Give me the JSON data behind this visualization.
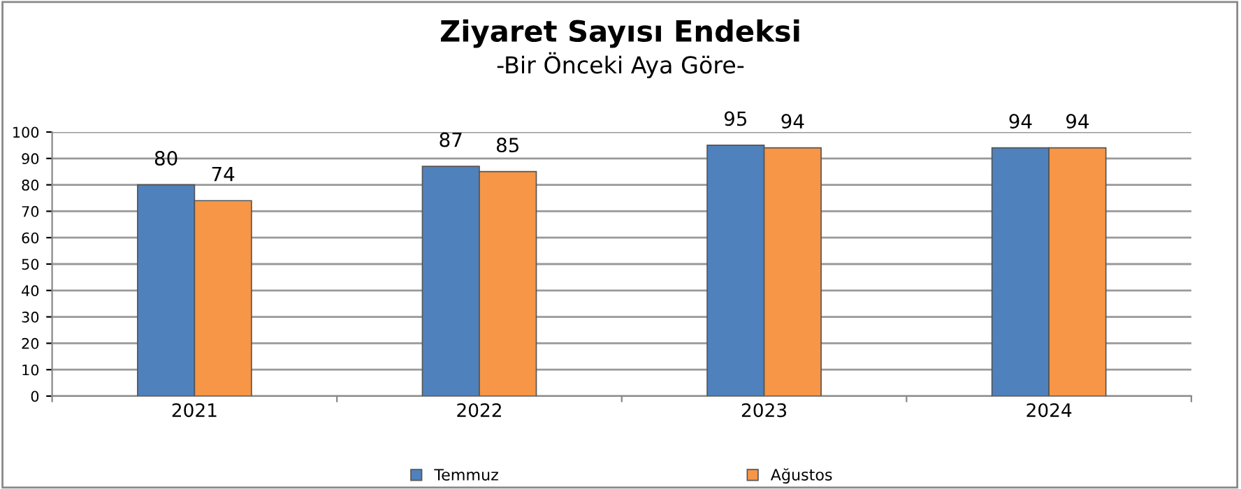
{
  "chart_data": {
    "type": "bar",
    "title": "Ziyaret Sayısı Endeksi",
    "subtitle": "-Bir Önceki Aya Göre-",
    "categories": [
      "2021",
      "2022",
      "2023",
      "2024"
    ],
    "series": [
      {
        "name": "Temmuz",
        "color": "#4f81bd",
        "values": [
          80,
          87,
          95,
          94
        ]
      },
      {
        "name": "Ağustos",
        "color": "#f79646",
        "values": [
          74,
          85,
          94,
          94
        ]
      }
    ],
    "ylim": [
      0,
      100
    ],
    "yticks": [
      0,
      10,
      20,
      30,
      40,
      50,
      60,
      70,
      80,
      90,
      100
    ],
    "grid": "y",
    "legend": "bottom",
    "data_labels": true
  }
}
